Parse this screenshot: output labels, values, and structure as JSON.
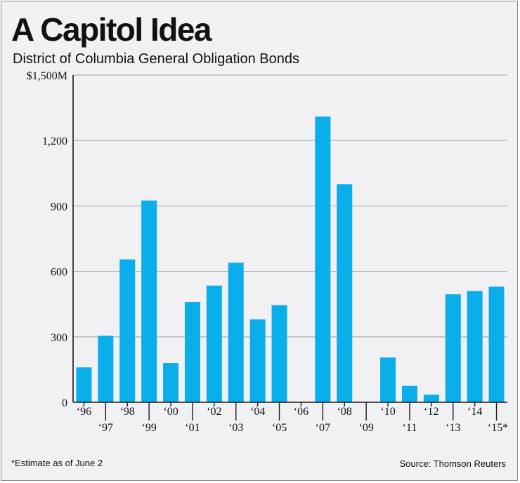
{
  "title": "A Capitol Idea",
  "subtitle": "District of Columbia General Obligation Bonds",
  "footnote": "*Estimate as of June 2",
  "source": "Source: Thomson Reuters",
  "chart_data": {
    "type": "bar",
    "title": "A Capitol Idea",
    "subtitle": "District of Columbia General Obligation Bonds",
    "xlabel": "",
    "ylabel": "",
    "categories": [
      "‘96",
      "‘97",
      "‘98",
      "‘99",
      "‘00",
      "‘01",
      "‘02",
      "‘03",
      "‘04",
      "‘05",
      "‘06",
      "‘07",
      "‘08",
      "‘09",
      "‘10",
      "‘11",
      "‘12",
      "‘13",
      "‘14",
      "‘15*"
    ],
    "values": [
      160,
      305,
      655,
      925,
      180,
      460,
      535,
      640,
      380,
      445,
      0,
      1310,
      1000,
      0,
      205,
      75,
      35,
      495,
      510,
      530
    ],
    "ylim": [
      0,
      1500
    ],
    "yticks": [
      0,
      300,
      600,
      900,
      1200,
      1500
    ],
    "ytick_labels": [
      "0",
      "300",
      "600",
      "900",
      "1,200",
      "$1,500M"
    ],
    "grid": true,
    "bar_color": "#0aaeea",
    "legend": "none"
  }
}
